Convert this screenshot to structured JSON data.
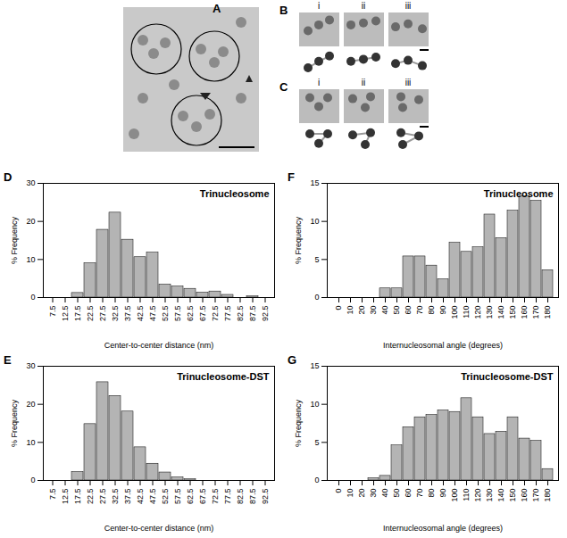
{
  "image_panels": [
    {
      "panel": "A"
    },
    {
      "panel": "B",
      "items": [
        "i",
        "ii",
        "iii"
      ]
    },
    {
      "panel": "C",
      "items": [
        "i",
        "ii",
        "iii"
      ]
    }
  ],
  "chart_data": [
    {
      "type": "bar",
      "panel": "D",
      "title": "Trinucleosome",
      "x_label": "Center-to-center distance (nm)",
      "y_label": "% Frequency",
      "categories": [
        7.5,
        12.5,
        17.5,
        22.5,
        27.5,
        32.5,
        37.5,
        42.5,
        47.5,
        52.5,
        57.5,
        62.5,
        67.5,
        72.5,
        77.5,
        82.5,
        87.5,
        92.5
      ],
      "values": [
        0,
        0,
        1.2,
        9,
        17.8,
        22.3,
        15.2,
        10.6,
        11.8,
        3.4,
        2.9,
        2.3,
        1.3,
        1.6,
        0.7,
        0,
        0.3,
        0
      ],
      "color": "#b4b4b4",
      "ylim": [
        0,
        30
      ],
      "yticks": [
        0,
        10,
        20,
        30
      ]
    },
    {
      "type": "bar",
      "panel": "E",
      "title": "Trinucleosome-DST",
      "x_label": "Center-to-center distance (nm)",
      "y_label": "% Frequency",
      "categories": [
        7.5,
        12.5,
        17.5,
        22.5,
        27.5,
        32.5,
        37.5,
        42.5,
        47.5,
        52.5,
        57.5,
        62.5,
        67.5,
        72.5,
        77.5,
        82.5,
        87.5,
        92.5
      ],
      "values": [
        0,
        0,
        2.2,
        14.8,
        25.8,
        22.2,
        18.1,
        8.7,
        4.4,
        2.1,
        0.8,
        0.3,
        0,
        0,
        0,
        0,
        0,
        0
      ],
      "color": "#b4b4b4",
      "ylim": [
        0,
        30
      ],
      "yticks": [
        0,
        10,
        20,
        30
      ]
    },
    {
      "type": "bar",
      "panel": "F",
      "title": "Trinucleosome",
      "x_label": "Internucleosomal angle (degrees)",
      "y_label": "% Frequency",
      "categories": [
        0,
        10,
        20,
        30,
        40,
        50,
        60,
        70,
        80,
        90,
        100,
        110,
        120,
        130,
        140,
        150,
        160,
        170,
        180
      ],
      "values": [
        0,
        0,
        0,
        0,
        1.2,
        1.2,
        5.4,
        5.4,
        4.2,
        2.4,
        7.2,
        6.0,
        6.6,
        10.9,
        7.8,
        11.4,
        13.3,
        12.7,
        3.6
      ],
      "color": "#b4b4b4",
      "ylim": [
        0,
        15
      ],
      "yticks": [
        0,
        5,
        10,
        15
      ]
    },
    {
      "type": "bar",
      "panel": "G",
      "title": "Trinucleosome-DST",
      "x_label": "Internucleosomal angle (degrees)",
      "y_label": "% Frequency",
      "categories": [
        0,
        10,
        20,
        30,
        40,
        50,
        60,
        70,
        80,
        90,
        100,
        110,
        120,
        130,
        140,
        150,
        160,
        170,
        180
      ],
      "values": [
        0,
        0,
        0,
        0.3,
        0.6,
        4.6,
        7.0,
        8.3,
        8.6,
        9.2,
        9.0,
        10.8,
        8.3,
        6.1,
        6.4,
        8.3,
        5.5,
        5.2,
        1.5
      ],
      "color": "#b4b4b4",
      "ylim": [
        0,
        15
      ],
      "yticks": [
        0,
        5,
        10,
        15
      ]
    }
  ]
}
